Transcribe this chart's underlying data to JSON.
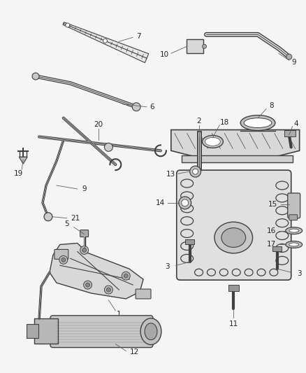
{
  "bg_color": "#f5f5f5",
  "line_color": "#404040",
  "leader_color": "#606060",
  "fig_width": 4.38,
  "fig_height": 5.33,
  "dpi": 100
}
